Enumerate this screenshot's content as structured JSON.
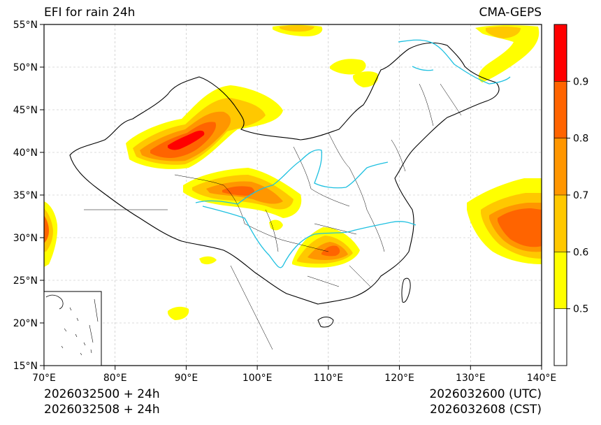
{
  "title_left": "EFI for rain 24h",
  "title_right": "CMA-GEPS",
  "init_utc": "2026032500 + 24h",
  "init_cst": "2026032508 + 24h",
  "valid_utc": "2026032600 (UTC)",
  "valid_cst": "2026032608 (CST)",
  "map": {
    "lon_range": [
      70,
      140
    ],
    "lat_range": [
      15,
      55
    ],
    "lon_ticks": [
      {
        "value": 70,
        "label": "70°E"
      },
      {
        "value": 80,
        "label": "80°E"
      },
      {
        "value": 90,
        "label": "90°E"
      },
      {
        "value": 100,
        "label": "100°E"
      },
      {
        "value": 110,
        "label": "110°E"
      },
      {
        "value": 120,
        "label": "120°E"
      },
      {
        "value": 130,
        "label": "130°E"
      },
      {
        "value": 140,
        "label": "140°E"
      }
    ],
    "lat_ticks": [
      {
        "value": 15,
        "label": "15°N"
      },
      {
        "value": 20,
        "label": "20°N"
      },
      {
        "value": 25,
        "label": "25°N"
      },
      {
        "value": 30,
        "label": "30°N"
      },
      {
        "value": 35,
        "label": "35°N"
      },
      {
        "value": 40,
        "label": "40°N"
      },
      {
        "value": 45,
        "label": "45°N"
      },
      {
        "value": 50,
        "label": "50°N"
      },
      {
        "value": 55,
        "label": "55°N"
      }
    ],
    "grid": true,
    "inset_map": "South China Sea"
  },
  "colorbar": {
    "levels": [
      {
        "from": 0.4,
        "to": 0.5,
        "color": "#ffffff"
      },
      {
        "from": 0.5,
        "to": 0.6,
        "color": "#ffff00"
      },
      {
        "from": 0.6,
        "to": 0.7,
        "color": "#ffc800"
      },
      {
        "from": 0.7,
        "to": 0.8,
        "color": "#ff9600"
      },
      {
        "from": 0.8,
        "to": 0.9,
        "color": "#ff6400"
      },
      {
        "from": 0.9,
        "to": 1.0,
        "color": "#ff0000"
      }
    ],
    "tick_labels": [
      "0.5",
      "0.6",
      "0.7",
      "0.8",
      "0.9"
    ]
  }
}
